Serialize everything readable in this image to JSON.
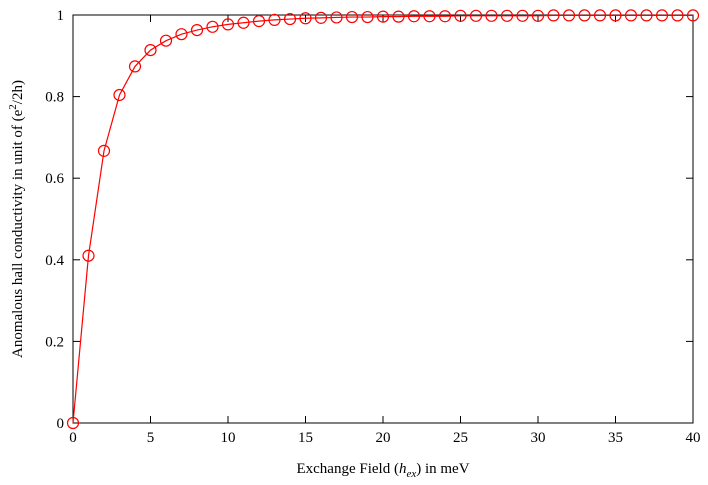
{
  "chart_data": {
    "type": "line",
    "xlabel": {
      "prefix": "Exchange Field (",
      "var": "h",
      "sub": "ex",
      "suffix": ") in meV"
    },
    "ylabel": {
      "prefix": "Anomalous hall conductivity in unit of (e",
      "sup": "2",
      "suffix": "/2h)"
    },
    "xlim": [
      0,
      40
    ],
    "ylim": [
      0,
      1
    ],
    "xticks": [
      "0",
      "5",
      "10",
      "15",
      "20",
      "25",
      "30",
      "35",
      "40"
    ],
    "yticks": [
      "0",
      "0.2",
      "0.4",
      "0.6",
      "0.8",
      "1"
    ],
    "grid": false,
    "legend": false,
    "series_color": "#ff0000",
    "marker": "open-circle",
    "x": [
      0,
      1,
      2,
      3,
      4,
      5,
      6,
      7,
      8,
      9,
      10,
      11,
      12,
      13,
      14,
      15,
      16,
      17,
      18,
      19,
      20,
      21,
      22,
      23,
      24,
      25,
      26,
      27,
      28,
      29,
      30,
      31,
      32,
      33,
      34,
      35,
      36,
      37,
      38,
      39,
      40
    ],
    "y": [
      0,
      0.41,
      0.667,
      0.804,
      0.874,
      0.914,
      0.937,
      0.953,
      0.963,
      0.971,
      0.977,
      0.981,
      0.985,
      0.988,
      0.99,
      0.992,
      0.993,
      0.994,
      0.995,
      0.995,
      0.996,
      0.996,
      0.997,
      0.997,
      0.997,
      0.998,
      0.998,
      0.998,
      0.998,
      0.998,
      0.998,
      0.999,
      0.999,
      0.999,
      0.999,
      0.999,
      0.999,
      0.999,
      0.999,
      0.999,
      0.999
    ]
  }
}
